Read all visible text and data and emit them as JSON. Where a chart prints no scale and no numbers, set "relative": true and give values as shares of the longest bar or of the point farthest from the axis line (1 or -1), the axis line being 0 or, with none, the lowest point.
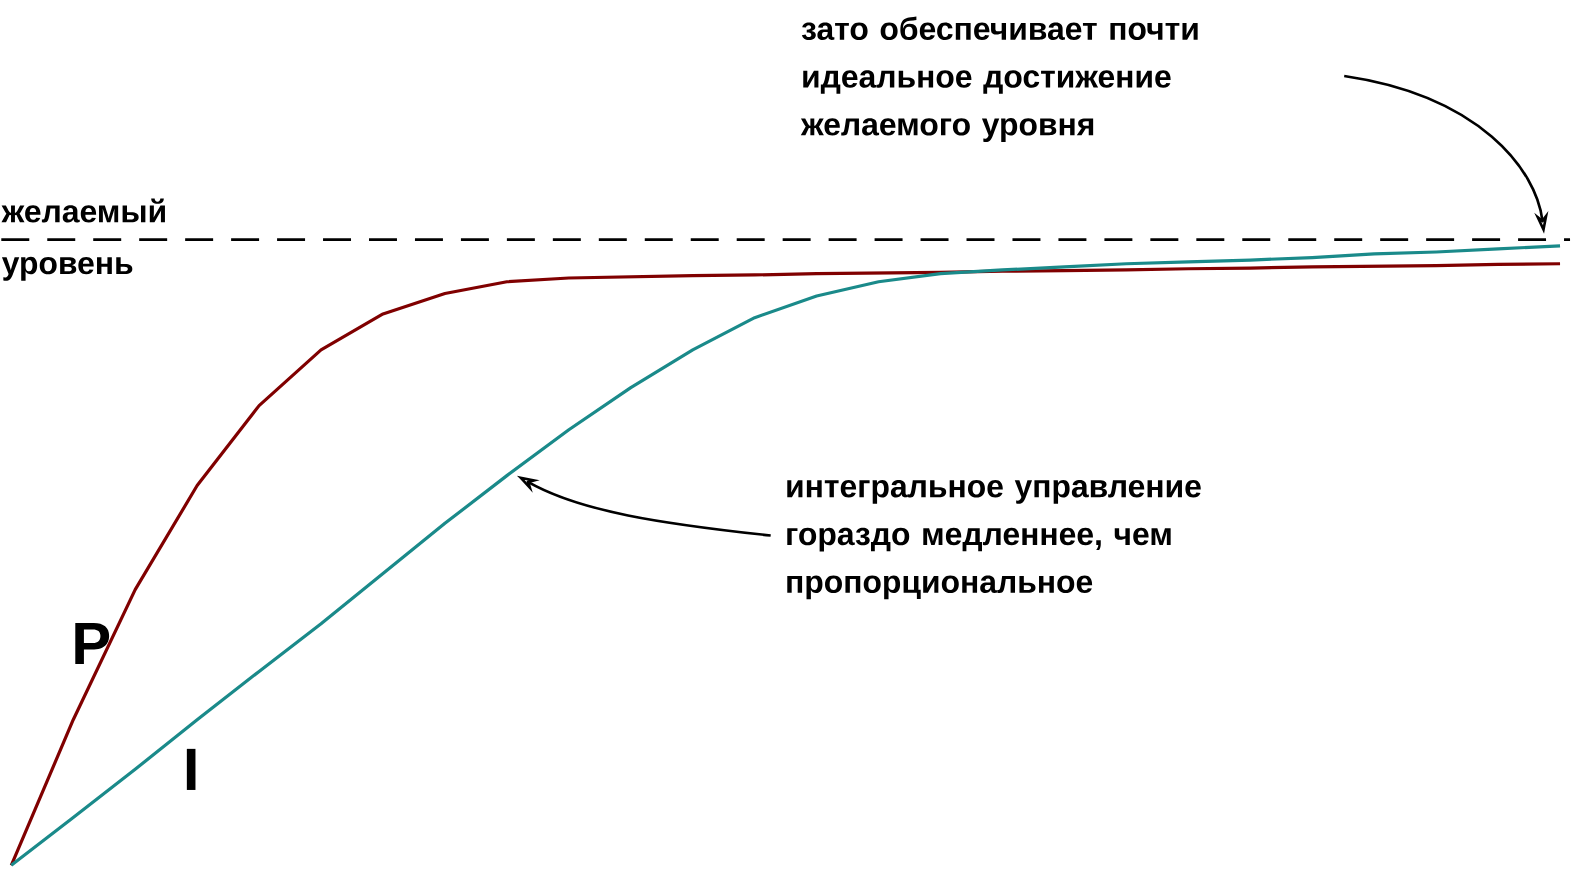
{
  "chart_data": {
    "type": "line",
    "relative": true,
    "legend": false,
    "categories": [
      null,
      null,
      null,
      null,
      null,
      null,
      null,
      null,
      null,
      null,
      null,
      null,
      null,
      null,
      null,
      null,
      null,
      null,
      null,
      null,
      null,
      null,
      null,
      null,
      null,
      null
    ],
    "series": [
      {
        "name": "P",
        "color": "#800000",
        "values": [
          0,
          0.235,
          0.445,
          0.613,
          0.742,
          0.832,
          0.89,
          0.923,
          0.942,
          0.948,
          0.95,
          0.952,
          0.953,
          0.955,
          0.956,
          0.957,
          0.959,
          0.96,
          0.961,
          0.963,
          0.964,
          0.966,
          0.967,
          0.968,
          0.97,
          0.971
        ]
      },
      {
        "name": "I",
        "color": "#1a8a8a",
        "values": [
          0,
          0.077,
          0.155,
          0.235,
          0.313,
          0.39,
          0.471,
          0.552,
          0.629,
          0.703,
          0.771,
          0.832,
          0.884,
          0.919,
          0.942,
          0.955,
          0.961,
          0.966,
          0.971,
          0.974,
          0.977,
          0.981,
          0.987,
          0.99,
          0.995,
          1
        ]
      }
    ],
    "ref_lines": [
      {
        "axis": "y",
        "value": 1.01,
        "label": "желаемый уровень",
        "color": "#000000",
        "line_style": "dashed"
      }
    ],
    "annotations": [
      "зато обеспечивает почти идеальное достижение желаемого уровня",
      "интегральное управление гораздо медленнее, чем пропорциональное"
    ]
  }
}
